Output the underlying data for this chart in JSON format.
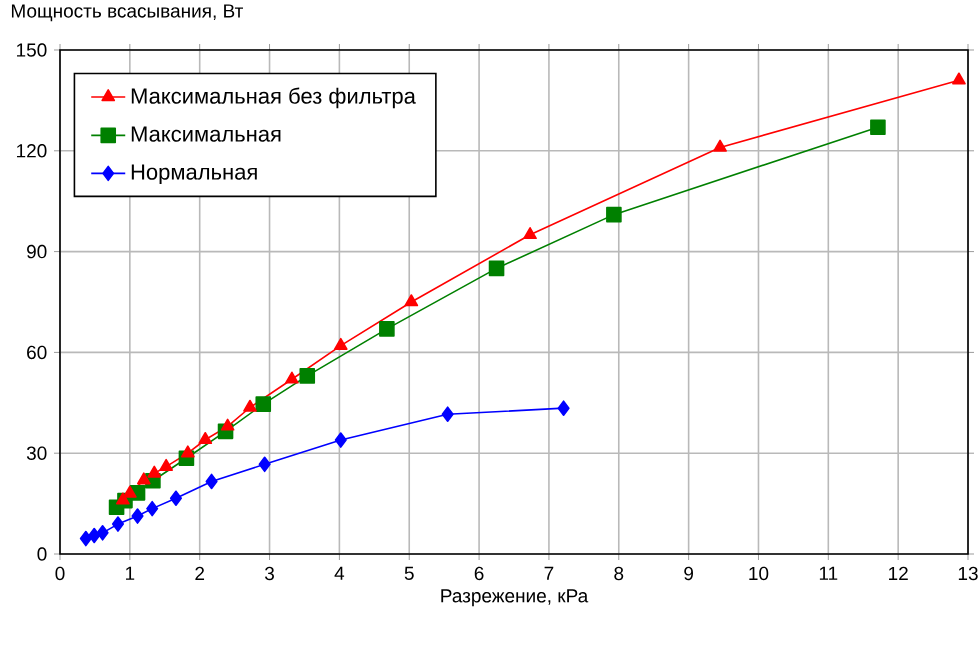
{
  "chart_data": {
    "type": "line",
    "xlabel": "Разрежение, кРа",
    "ylabel": "Мощность всасывания, Вт",
    "xlim": [
      0,
      13
    ],
    "xticks": [
      0,
      1,
      2,
      3,
      4,
      5,
      6,
      7,
      8,
      9,
      10,
      11,
      12,
      13
    ],
    "ylim": [
      0,
      150
    ],
    "yticks": [
      0,
      30,
      60,
      90,
      120,
      150
    ],
    "grid": true,
    "legend": "top left",
    "line_style": "solid",
    "series": [
      {
        "name": "Максимальная без фильтра",
        "color": "#ff0000",
        "marker": "triangle",
        "x": [
          0.9,
          1.0,
          1.2,
          1.35,
          1.52,
          1.83,
          2.08,
          2.4,
          2.72,
          3.32,
          4.02,
          5.03,
          6.73,
          9.45,
          12.87
        ],
        "values": [
          16,
          18,
          22,
          24,
          26,
          30,
          34,
          38,
          43.6,
          52,
          62,
          75,
          95,
          121,
          141
        ]
      },
      {
        "name": "Максимальная",
        "color": "#008000",
        "marker": "square",
        "x": [
          0.81,
          0.93,
          1.11,
          1.33,
          1.81,
          2.37,
          2.91,
          3.54,
          4.68,
          6.25,
          7.93,
          11.71
        ],
        "values": [
          13.9,
          15.9,
          18.2,
          21.8,
          28.5,
          36.5,
          44.6,
          53,
          67,
          85,
          101,
          127
        ]
      },
      {
        "name": "Нормальная",
        "color": "#0000ff",
        "marker": "diamond",
        "x": [
          0.37,
          0.49,
          0.61,
          0.83,
          1.11,
          1.32,
          1.66,
          2.17,
          2.93,
          4.02,
          5.55,
          7.21
        ],
        "values": [
          4.6,
          5.5,
          6.3,
          8.9,
          11.3,
          13.5,
          16.6,
          21.6,
          26.7,
          33.9,
          41.6,
          43.4
        ]
      }
    ]
  }
}
